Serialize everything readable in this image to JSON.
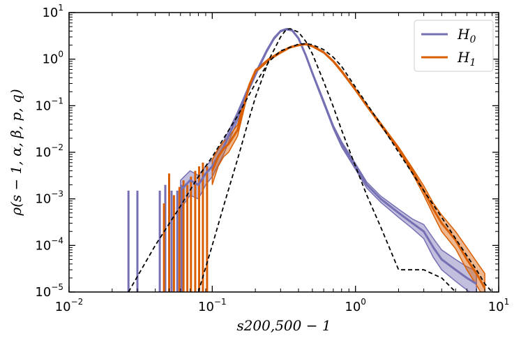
{
  "chart_data": {
    "type": "line",
    "xscale": "log",
    "yscale": "log",
    "xlim": [
      0.01,
      10
    ],
    "ylim": [
      1e-05,
      10
    ],
    "xlabel": "s200,500 − 1",
    "ylabel": "ρ(s − 1, α, β, p, q)",
    "xticks": [
      {
        "base": "10",
        "exp": "−2",
        "value": 0.01
      },
      {
        "base": "10",
        "exp": "−1",
        "value": 0.1
      },
      {
        "base": "10",
        "exp": "0",
        "value": 1
      },
      {
        "base": "10",
        "exp": "1",
        "value": 10
      }
    ],
    "yticks": [
      {
        "base": "10",
        "exp": "−5",
        "value": 1e-05
      },
      {
        "base": "10",
        "exp": "−4",
        "value": 0.0001
      },
      {
        "base": "10",
        "exp": "−3",
        "value": 0.001
      },
      {
        "base": "10",
        "exp": "−2",
        "value": 0.01
      },
      {
        "base": "10",
        "exp": "−1",
        "value": 0.1
      },
      {
        "base": "10",
        "exp": "0",
        "value": 1
      },
      {
        "base": "10",
        "exp": "1",
        "value": 10
      }
    ],
    "legend": {
      "placement": "top-right",
      "entries": [
        {
          "label": "H",
          "sub": "0",
          "color": "#7570b3"
        },
        {
          "label": "H",
          "sub": "1",
          "color": "#d95f02"
        }
      ]
    },
    "series": [
      {
        "name": "H0",
        "color": "#7570b3",
        "x": [
          0.06,
          0.07,
          0.08,
          0.09,
          0.1,
          0.12,
          0.15,
          0.18,
          0.21,
          0.24,
          0.27,
          0.3,
          0.33,
          0.36,
          0.4,
          0.45,
          0.5,
          0.6,
          0.7,
          0.8,
          1.0,
          1.2,
          1.5,
          2.0,
          2.5,
          3.0,
          3.5,
          4.0,
          5.0,
          6.0,
          7.0
        ],
        "y": [
          0.0015,
          0.0025,
          0.002,
          0.0035,
          0.005,
          0.013,
          0.06,
          0.24,
          0.65,
          1.5,
          2.8,
          4.0,
          4.4,
          4.2,
          2.8,
          1.2,
          0.5,
          0.12,
          0.035,
          0.015,
          0.005,
          0.002,
          0.001,
          0.0005,
          0.0003,
          0.0002,
          9e-05,
          5e-05,
          3e-05,
          2e-05,
          1.5e-05
        ],
        "band_lower": [
          0.0006,
          0.0012,
          0.001,
          0.002,
          0.003,
          0.009,
          0.048,
          0.21,
          0.6,
          1.4,
          2.65,
          3.85,
          4.25,
          4.05,
          2.7,
          1.15,
          0.47,
          0.11,
          0.032,
          0.013,
          0.0043,
          0.0017,
          0.00085,
          0.0004,
          0.00023,
          0.00014,
          5.5e-05,
          3e-05,
          1.7e-05,
          1.1e-05,
          8e-06
        ],
        "band_upper": [
          0.0025,
          0.004,
          0.0032,
          0.005,
          0.007,
          0.017,
          0.073,
          0.27,
          0.7,
          1.6,
          2.95,
          4.15,
          4.55,
          4.35,
          2.9,
          1.25,
          0.53,
          0.13,
          0.038,
          0.017,
          0.0057,
          0.0023,
          0.00115,
          0.0006,
          0.00037,
          0.00028,
          0.00014,
          8e-05,
          5e-05,
          3.5e-05,
          2.8e-05
        ]
      },
      {
        "name": "H1",
        "color": "#d95f02",
        "x": [
          0.1,
          0.11,
          0.12,
          0.13,
          0.15,
          0.18,
          0.2,
          0.25,
          0.3,
          0.35,
          0.4,
          0.45,
          0.5,
          0.6,
          0.7,
          0.8,
          1.0,
          1.2,
          1.5,
          2.0,
          2.5,
          3.0,
          3.5,
          4.0,
          5.0,
          6.0,
          7.0,
          8.0
        ],
        "y": [
          0.004,
          0.008,
          0.012,
          0.015,
          0.03,
          0.25,
          0.55,
          1.0,
          1.4,
          1.8,
          2.0,
          2.1,
          1.9,
          1.4,
          0.9,
          0.55,
          0.22,
          0.1,
          0.04,
          0.012,
          0.004,
          0.0015,
          0.0006,
          0.0003,
          0.00013,
          5e-05,
          2.5e-05,
          1.2e-05
        ],
        "band_lower": [
          0.002,
          0.005,
          0.008,
          0.01,
          0.022,
          0.22,
          0.51,
          0.95,
          1.34,
          1.74,
          1.94,
          2.04,
          1.84,
          1.35,
          0.86,
          0.52,
          0.21,
          0.095,
          0.037,
          0.011,
          0.0035,
          0.0012,
          0.00045,
          0.0002,
          8.5e-05,
          3e-05,
          1.4e-05,
          7e-06
        ],
        "band_upper": [
          0.007,
          0.012,
          0.017,
          0.021,
          0.039,
          0.28,
          0.59,
          1.05,
          1.46,
          1.86,
          2.06,
          2.16,
          1.96,
          1.45,
          0.94,
          0.58,
          0.23,
          0.105,
          0.043,
          0.013,
          0.0046,
          0.0019,
          0.0008,
          0.00045,
          0.0002,
          9e-05,
          4.5e-05,
          2.5e-05
        ]
      },
      {
        "color": "#000000",
        "style": "dashed",
        "x": [
          0.08,
          0.1,
          0.12,
          0.15,
          0.18,
          0.2,
          0.25,
          0.3,
          0.33,
          0.35,
          0.4,
          0.45,
          0.5,
          0.6,
          0.7,
          0.8,
          1.0,
          1.2,
          1.5,
          2.0,
          2.5,
          3.0,
          4.0,
          5.0
        ],
        "y": [
          1e-05,
          0.0001,
          0.0007,
          0.007,
          0.05,
          0.15,
          1.0,
          3.0,
          4.4,
          4.5,
          3.8,
          2.4,
          1.3,
          0.33,
          0.095,
          0.03,
          0.005,
          0.0012,
          0.00025,
          3e-05,
          3e-05,
          3e-05,
          2e-05,
          1e-05
        ]
      },
      {
        "color": "#000000",
        "style": "dashed",
        "x": [
          0.026,
          0.04,
          0.06,
          0.08,
          0.1,
          0.15,
          0.2,
          0.25,
          0.3,
          0.4,
          0.45,
          0.5,
          0.6,
          0.7,
          0.8,
          1.0,
          1.5,
          2.0,
          3.0,
          4.0,
          5.0,
          6.0,
          7.0,
          8.0,
          9.0
        ],
        "y": [
          1e-05,
          0.0001,
          0.0007,
          0.003,
          0.008,
          0.06,
          0.3,
          0.9,
          1.5,
          2.1,
          2.15,
          2.05,
          1.6,
          1.1,
          0.7,
          0.25,
          0.04,
          0.01,
          0.0015,
          0.0004,
          0.00014,
          6e-05,
          3e-05,
          1.5e-05,
          1e-05
        ]
      }
    ],
    "spikes": [
      {
        "x": 0.026,
        "y_low": 1e-05,
        "y_high": 0.0015,
        "color": "#7570b3"
      },
      {
        "x": 0.03,
        "y_low": 1e-05,
        "y_high": 0.0015,
        "color": "#7570b3"
      },
      {
        "x": 0.043,
        "y_low": 1e-05,
        "y_high": 0.0015,
        "color": "#7570b3"
      },
      {
        "x": 0.047,
        "y_low": 1e-05,
        "y_high": 0.002,
        "color": "#7570b3"
      },
      {
        "x": 0.052,
        "y_low": 1e-05,
        "y_high": 0.0015,
        "color": "#7570b3"
      },
      {
        "x": 0.057,
        "y_low": 1e-05,
        "y_high": 0.0015,
        "color": "#7570b3"
      },
      {
        "x": 0.061,
        "y_low": 1e-05,
        "y_high": 0.002,
        "color": "#7570b3"
      },
      {
        "x": 0.046,
        "y_low": 1e-05,
        "y_high": 0.0008,
        "color": "#d95f02"
      },
      {
        "x": 0.05,
        "y_low": 1e-05,
        "y_high": 0.0035,
        "color": "#d95f02"
      },
      {
        "x": 0.054,
        "y_low": 1e-05,
        "y_high": 0.0012,
        "color": "#d95f02"
      },
      {
        "x": 0.059,
        "y_low": 1e-05,
        "y_high": 0.0018,
        "color": "#d95f02"
      },
      {
        "x": 0.063,
        "y_low": 1e-05,
        "y_high": 0.0025,
        "color": "#d95f02"
      },
      {
        "x": 0.067,
        "y_low": 1e-05,
        "y_high": 0.002,
        "color": "#d95f02"
      },
      {
        "x": 0.071,
        "y_low": 1e-05,
        "y_high": 0.003,
        "color": "#d95f02"
      },
      {
        "x": 0.076,
        "y_low": 1e-05,
        "y_high": 0.004,
        "color": "#d95f02"
      },
      {
        "x": 0.081,
        "y_low": 1e-05,
        "y_high": 0.005,
        "color": "#d95f02"
      },
      {
        "x": 0.086,
        "y_low": 1e-05,
        "y_high": 0.006,
        "color": "#d95f02"
      },
      {
        "x": 0.092,
        "y_low": 1e-05,
        "y_high": 0.005,
        "color": "#d95f02"
      }
    ]
  }
}
